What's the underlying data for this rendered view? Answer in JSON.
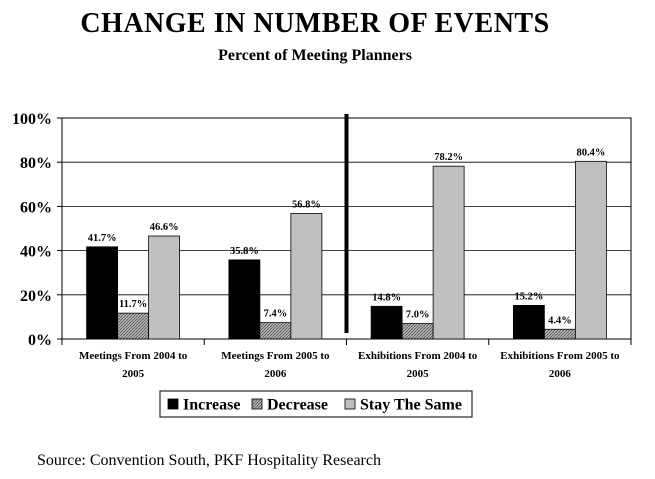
{
  "title": "CHANGE IN NUMBER OF EVENTS",
  "subtitle": "Percent of Meeting Planners",
  "source": "Source: Convention South, PKF Hospitality Research",
  "colors": {
    "increase": "#000000",
    "decrease": "#9a9a9a",
    "stay": "#c0c0c0"
  },
  "chart_data": {
    "type": "bar",
    "categories": [
      [
        "Meetings From 2004 to",
        "2005"
      ],
      [
        "Meetings From 2005 to",
        "2006"
      ],
      [
        "Exhibitions From 2004 to",
        "2005"
      ],
      [
        "Exhibitions From 2005 to",
        "2006"
      ]
    ],
    "series": [
      {
        "name": "Increase",
        "values": [
          41.7,
          35.8,
          14.8,
          15.2
        ],
        "labels": [
          "41.7%",
          "35.8%",
          "14.8%",
          "15.2%"
        ]
      },
      {
        "name": "Decrease",
        "values": [
          11.7,
          7.4,
          7.0,
          4.4
        ],
        "labels": [
          "11.7%",
          "7.4%",
          "7.0%",
          "4.4%"
        ]
      },
      {
        "name": "Stay The Same",
        "values": [
          46.6,
          56.8,
          78.2,
          80.4
        ],
        "labels": [
          "46.6%",
          "56.8%",
          "78.2%",
          "80.4%"
        ]
      }
    ],
    "yticks": [
      "0%",
      "20%",
      "40%",
      "60%",
      "80%",
      "100%"
    ],
    "ylim": [
      0,
      100
    ],
    "grid": true,
    "legend_position": "bottom",
    "divider_between_groups": [
      1,
      2
    ]
  }
}
